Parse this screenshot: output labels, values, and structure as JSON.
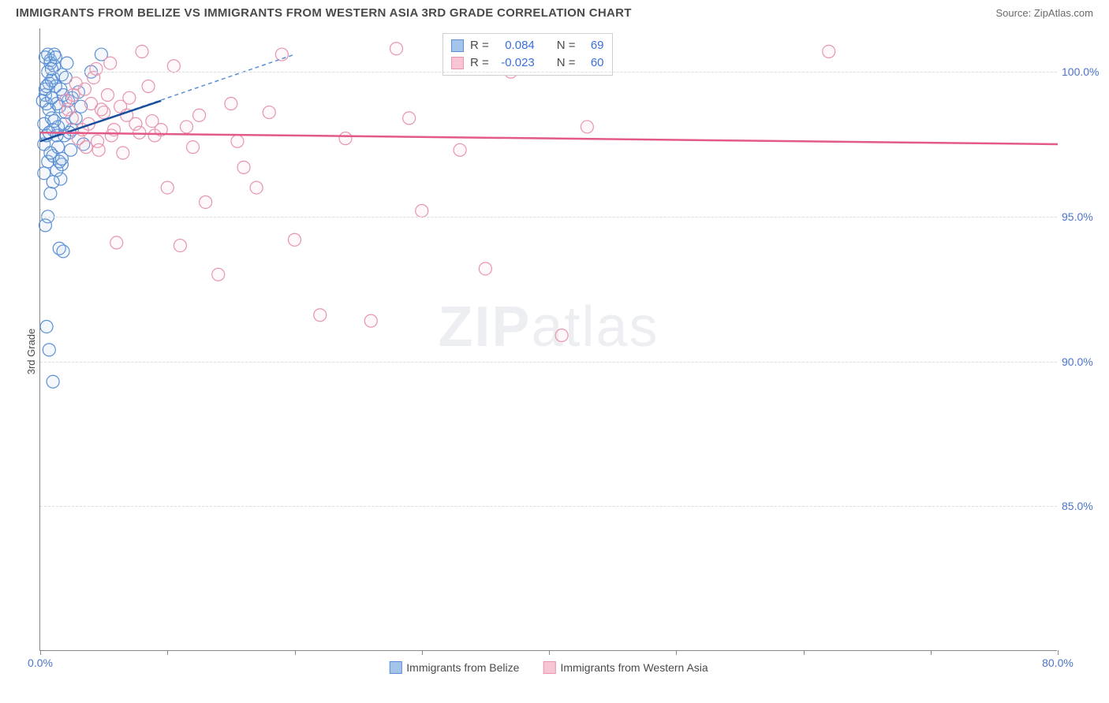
{
  "header": {
    "title": "IMMIGRANTS FROM BELIZE VS IMMIGRANTS FROM WESTERN ASIA 3RD GRADE CORRELATION CHART",
    "source_prefix": "Source: ",
    "source_name": "ZipAtlas.com"
  },
  "chart": {
    "type": "scatter",
    "ylabel": "3rd Grade",
    "xlim": [
      0,
      80
    ],
    "ylim": [
      80,
      101.5
    ],
    "x_ticks": [
      0,
      10,
      20,
      30,
      40,
      50,
      60,
      70,
      80
    ],
    "x_tick_labels": {
      "0": "0.0%",
      "80": "80.0%"
    },
    "y_ticks": [
      85,
      90,
      95,
      100
    ],
    "y_tick_labels": {
      "85": "85.0%",
      "90": "90.0%",
      "95": "95.0%",
      "100": "100.0%"
    },
    "background_color": "#ffffff",
    "grid_color": "#dcdcdc",
    "axis_color": "#888888",
    "marker_radius": 8,
    "marker_stroke_width": 1.2,
    "marker_fill_opacity": 0.12,
    "watermark": "ZIPatlas"
  },
  "series": {
    "belize": {
      "label": "Immigrants from Belize",
      "color_stroke": "#5a8fd6",
      "color_fill": "#a5c4ea",
      "r_value": "0.084",
      "n_value": "69",
      "trend": {
        "x1": 0,
        "y1": 97.6,
        "x2": 9.5,
        "y2": 99.0,
        "color": "#1a4f9e",
        "width": 2.5
      },
      "trend_dashed": {
        "x1": 0,
        "y1": 97.6,
        "x2": 20,
        "y2": 100.6,
        "color": "#5a8fd6",
        "width": 1.5,
        "dash": "5,4"
      },
      "points": [
        [
          0.3,
          97.5
        ],
        [
          0.4,
          99.2
        ],
        [
          0.6,
          100.6
        ],
        [
          0.8,
          100.4
        ],
        [
          1.0,
          99.8
        ],
        [
          0.5,
          98.9
        ],
        [
          0.7,
          99.6
        ],
        [
          1.2,
          99.5
        ],
        [
          0.9,
          98.4
        ],
        [
          1.4,
          98.1
        ],
        [
          0.6,
          96.9
        ],
        [
          1.0,
          97.1
        ],
        [
          1.3,
          96.6
        ],
        [
          1.6,
          96.3
        ],
        [
          0.8,
          95.8
        ],
        [
          1.9,
          97.8
        ],
        [
          2.2,
          99.0
        ],
        [
          0.4,
          94.7
        ],
        [
          1.5,
          93.9
        ],
        [
          1.8,
          93.8
        ],
        [
          0.5,
          91.2
        ],
        [
          0.7,
          90.4
        ],
        [
          1.0,
          89.3
        ],
        [
          2.5,
          98.0
        ],
        [
          3.0,
          99.3
        ],
        [
          3.4,
          97.5
        ],
        [
          4.0,
          100.0
        ],
        [
          4.8,
          100.6
        ],
        [
          1.1,
          100.2
        ],
        [
          1.7,
          99.9
        ],
        [
          2.0,
          98.6
        ],
        [
          2.4,
          97.3
        ],
        [
          0.3,
          98.2
        ],
        [
          0.5,
          97.8
        ],
        [
          1.3,
          98.9
        ],
        [
          1.8,
          99.2
        ],
        [
          0.9,
          99.7
        ],
        [
          2.1,
          100.3
        ],
        [
          2.8,
          98.4
        ],
        [
          0.6,
          100.0
        ],
        [
          0.8,
          100.3
        ],
        [
          1.1,
          100.6
        ],
        [
          0.4,
          99.4
        ],
        [
          0.7,
          98.7
        ],
        [
          1.0,
          98.0
        ],
        [
          1.4,
          97.4
        ],
        [
          1.7,
          96.8
        ],
        [
          0.2,
          99.0
        ],
        [
          0.5,
          99.5
        ],
        [
          0.8,
          97.2
        ],
        [
          1.0,
          96.2
        ],
        [
          1.5,
          96.9
        ],
        [
          0.6,
          95.0
        ],
        [
          0.9,
          100.1
        ],
        [
          1.2,
          100.5
        ],
        [
          1.6,
          99.4
        ],
        [
          2.0,
          99.8
        ],
        [
          2.5,
          99.1
        ],
        [
          3.2,
          98.8
        ],
        [
          0.3,
          96.5
        ],
        [
          0.7,
          97.9
        ],
        [
          1.1,
          98.3
        ],
        [
          1.5,
          98.8
        ],
        [
          1.9,
          98.2
        ],
        [
          2.3,
          97.9
        ],
        [
          0.4,
          100.5
        ],
        [
          0.9,
          99.1
        ],
        [
          1.3,
          97.8
        ],
        [
          1.7,
          97.0
        ]
      ]
    },
    "wasia": {
      "label": "Immigrants from Western Asia",
      "color_stroke": "#e794ad",
      "color_fill": "#f6c6d4",
      "r_value": "-0.023",
      "n_value": "60",
      "trend": {
        "x1": 0,
        "y1": 97.9,
        "x2": 80,
        "y2": 97.5,
        "color": "#e35a86",
        "width": 2.5
      },
      "points": [
        [
          2.0,
          99.0
        ],
        [
          3.5,
          99.4
        ],
        [
          5.0,
          98.6
        ],
        [
          6.0,
          94.1
        ],
        [
          7.5,
          98.2
        ],
        [
          8.0,
          100.7
        ],
        [
          9.0,
          97.8
        ],
        [
          10.0,
          96.0
        ],
        [
          11.0,
          94.0
        ],
        [
          12.5,
          98.5
        ],
        [
          13.0,
          95.5
        ],
        [
          14.0,
          93.0
        ],
        [
          15.5,
          97.6
        ],
        [
          16.0,
          96.7
        ],
        [
          18.0,
          98.6
        ],
        [
          19.0,
          100.6
        ],
        [
          20.0,
          94.2
        ],
        [
          22.0,
          91.6
        ],
        [
          24.0,
          97.7
        ],
        [
          26.0,
          91.4
        ],
        [
          28.0,
          100.8
        ],
        [
          29.0,
          98.4
        ],
        [
          30.0,
          95.2
        ],
        [
          33.0,
          97.3
        ],
        [
          35.0,
          93.2
        ],
        [
          37.0,
          100.0
        ],
        [
          41.0,
          90.9
        ],
        [
          43.0,
          98.1
        ],
        [
          62.0,
          100.7
        ],
        [
          4.0,
          98.9
        ],
        [
          4.5,
          97.6
        ],
        [
          5.5,
          100.3
        ],
        [
          6.5,
          97.2
        ],
        [
          7.0,
          99.1
        ],
        [
          8.5,
          99.5
        ],
        [
          9.5,
          98.0
        ],
        [
          10.5,
          100.2
        ],
        [
          11.5,
          98.1
        ],
        [
          12.0,
          97.4
        ],
        [
          2.5,
          98.4
        ],
        [
          3.0,
          97.7
        ],
        [
          4.2,
          99.8
        ],
        [
          5.8,
          98.0
        ],
        [
          6.8,
          98.5
        ],
        [
          7.8,
          97.9
        ],
        [
          8.8,
          98.3
        ],
        [
          3.8,
          98.2
        ],
        [
          4.6,
          97.3
        ],
        [
          5.3,
          99.2
        ],
        [
          6.3,
          98.8
        ],
        [
          2.8,
          99.6
        ],
        [
          3.3,
          98.0
        ],
        [
          4.8,
          98.7
        ],
        [
          5.6,
          97.8
        ],
        [
          2.2,
          98.7
        ],
        [
          2.6,
          99.2
        ],
        [
          3.6,
          97.4
        ],
        [
          4.4,
          100.1
        ],
        [
          17.0,
          96.0
        ],
        [
          15.0,
          98.9
        ]
      ]
    }
  },
  "stats_legend": {
    "r_label": "R =",
    "n_label": "N ="
  },
  "bottom_legend": {
    "items": [
      "belize",
      "wasia"
    ]
  }
}
